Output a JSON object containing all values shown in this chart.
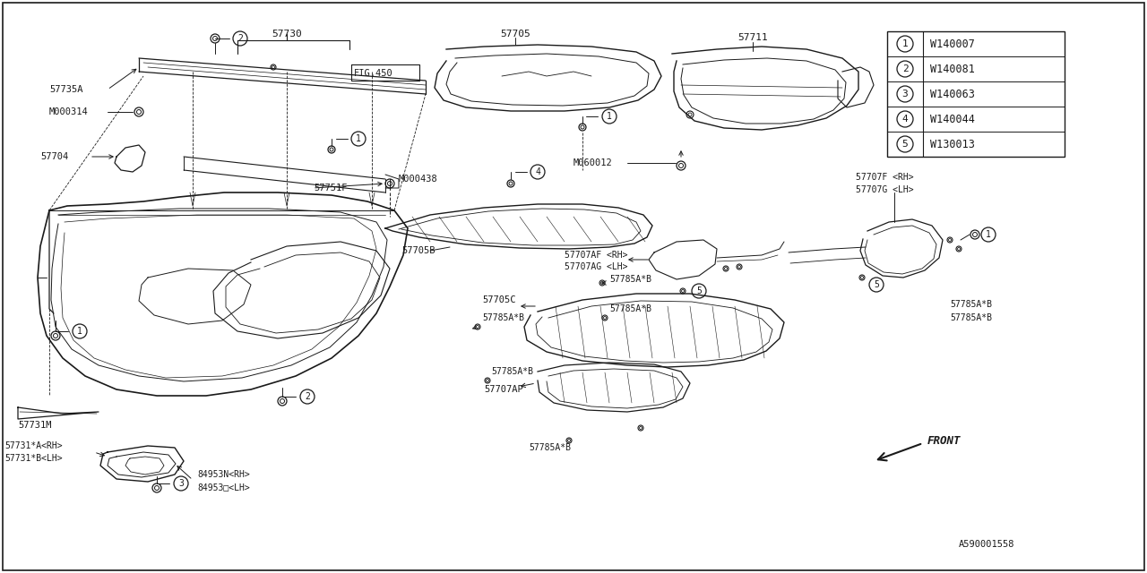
{
  "bg_color": "#ffffff",
  "line_color": "#1a1a1a",
  "diagram_id": "A590001558",
  "fig_ref": "FIG.450",
  "legend_items": [
    {
      "num": "1",
      "code": "W140007"
    },
    {
      "num": "2",
      "code": "W140081"
    },
    {
      "num": "3",
      "code": "W140063"
    },
    {
      "num": "4",
      "code": "W140044"
    },
    {
      "num": "5",
      "code": "W130013"
    }
  ]
}
